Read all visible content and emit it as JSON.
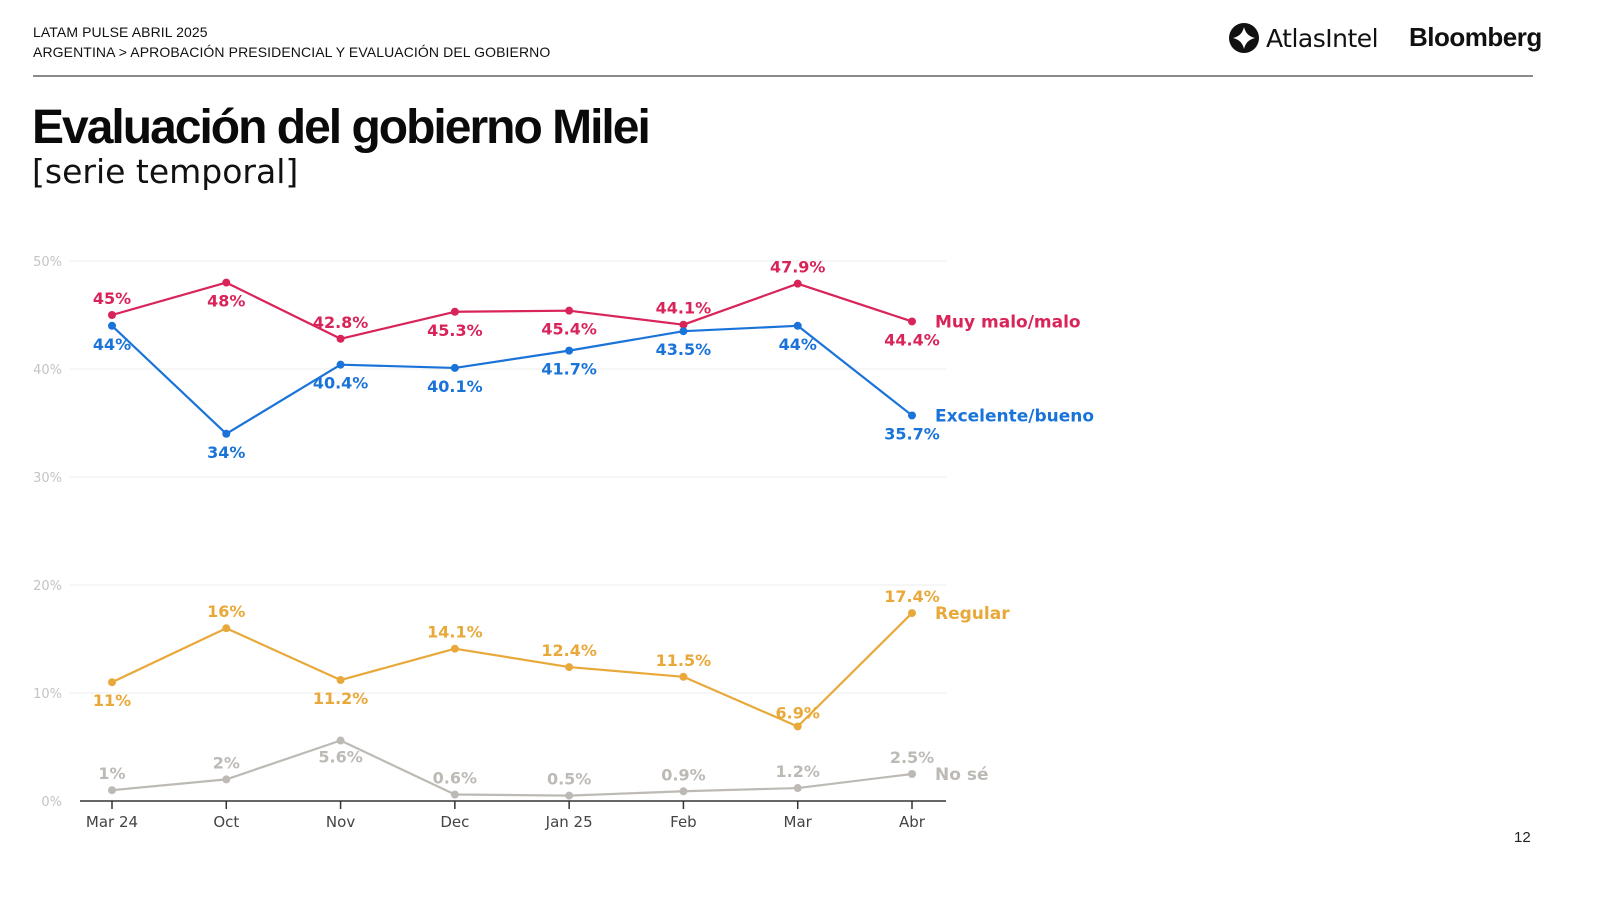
{
  "header": {
    "line1": "LATAM PULSE ABRIL 2025",
    "line2": "ARGENTINA > APROBACIÓN PRESIDENCIAL Y EVALUACIÓN DEL GOBIERNO",
    "logos": {
      "atlas": "AtlasIntel",
      "bloomberg": "Bloomberg"
    }
  },
  "title": "Evaluación del gobierno Milei",
  "subtitle": "[serie temporal]",
  "page_number": "12",
  "chart_data": {
    "type": "line",
    "title": "Evaluación del gobierno Milei",
    "subtitle": "[serie temporal]",
    "xlabel": "",
    "ylabel": "",
    "categories": [
      "Mar 24",
      "Oct",
      "Nov",
      "Dec",
      "Jan 25",
      "Feb",
      "Mar",
      "Abr"
    ],
    "ylim": [
      0,
      50
    ],
    "yticks": [
      0,
      10,
      20,
      30,
      40,
      50
    ],
    "ytick_labels": [
      "0%",
      "10%",
      "20%",
      "30%",
      "40%",
      "50%"
    ],
    "grid": true,
    "legend": "inline-right",
    "series": [
      {
        "name": "Muy malo/malo",
        "color": "#d9245a",
        "values": [
          45,
          48,
          42.8,
          45.3,
          45.4,
          44.1,
          47.9,
          44.4
        ],
        "labels": [
          "45%",
          "48%",
          "42.8%",
          "45.3%",
          "45.4%",
          "44.1%",
          "47.9%",
          "44.4%"
        ],
        "label_pos": [
          "above",
          "below",
          "above",
          "below",
          "below",
          "above",
          "above",
          "below"
        ]
      },
      {
        "name": "Excelente/bueno",
        "color": "#1a73d9",
        "values": [
          44,
          34,
          40.4,
          40.1,
          41.7,
          43.5,
          44,
          35.7
        ],
        "labels": [
          "44%",
          "34%",
          "40.4%",
          "40.1%",
          "41.7%",
          "43.5%",
          "44%",
          "35.7%"
        ],
        "label_pos": [
          "below",
          "below",
          "below",
          "below",
          "below",
          "below",
          "below",
          "below"
        ]
      },
      {
        "name": "Regular",
        "color": "#e8a93a",
        "values": [
          11,
          16,
          11.2,
          14.1,
          12.4,
          11.5,
          6.9,
          17.4
        ],
        "labels": [
          "11%",
          "16%",
          "11.2%",
          "14.1%",
          "12.4%",
          "11.5%",
          "6.9%",
          "17.4%"
        ],
        "label_pos": [
          "below",
          "above",
          "below",
          "above",
          "above",
          "above",
          "above",
          "above"
        ]
      },
      {
        "name": "No sé",
        "color": "#bdbab5",
        "values": [
          1,
          2,
          5.6,
          0.6,
          0.5,
          0.9,
          1.2,
          2.5
        ],
        "labels": [
          "1%",
          "2%",
          "5.6%",
          "0.6%",
          "0.5%",
          "0.9%",
          "1.2%",
          "2.5%"
        ],
        "label_pos": [
          "above",
          "above",
          "below",
          "above",
          "above",
          "above",
          "above",
          "above"
        ]
      }
    ]
  }
}
